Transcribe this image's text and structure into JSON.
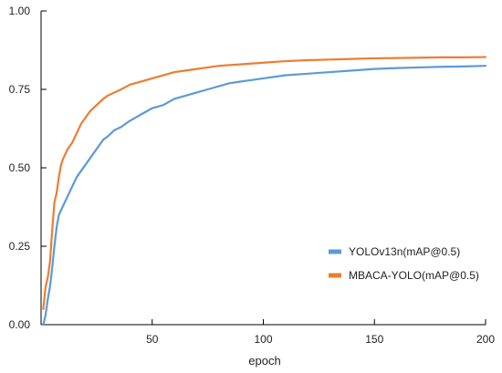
{
  "chart_data": {
    "type": "line",
    "title": "",
    "xlabel": "epoch",
    "ylabel": "",
    "xlim": [
      0,
      200
    ],
    "ylim": [
      0,
      1.0
    ],
    "x_ticks": [
      50,
      100,
      150,
      200
    ],
    "x_tick_labels": [
      "50",
      "100",
      "150",
      "200"
    ],
    "y_ticks": [
      0,
      0.25,
      0.5,
      0.75,
      1.0
    ],
    "y_tick_labels": [
      "0.00",
      "0.25",
      "0.50",
      "0.75",
      "1.00"
    ],
    "grid": false,
    "legend_position": "bottom-right",
    "series": [
      {
        "name": "YOLOv13n(mAP@0.5)",
        "color": "#5b9bd5",
        "points": [
          [
            1,
            0.0
          ],
          [
            2,
            0.03
          ],
          [
            3,
            0.08
          ],
          [
            4,
            0.12
          ],
          [
            5,
            0.18
          ],
          [
            6,
            0.25
          ],
          [
            7,
            0.31
          ],
          [
            8,
            0.35
          ],
          [
            10,
            0.38
          ],
          [
            12,
            0.41
          ],
          [
            14,
            0.44
          ],
          [
            16,
            0.47
          ],
          [
            18,
            0.49
          ],
          [
            20,
            0.51
          ],
          [
            22,
            0.53
          ],
          [
            25,
            0.56
          ],
          [
            28,
            0.59
          ],
          [
            30,
            0.6
          ],
          [
            33,
            0.62
          ],
          [
            36,
            0.63
          ],
          [
            40,
            0.65
          ],
          [
            45,
            0.67
          ],
          [
            50,
            0.69
          ],
          [
            55,
            0.7
          ],
          [
            60,
            0.72
          ],
          [
            65,
            0.73
          ],
          [
            70,
            0.74
          ],
          [
            75,
            0.75
          ],
          [
            80,
            0.76
          ],
          [
            85,
            0.77
          ],
          [
            90,
            0.775
          ],
          [
            95,
            0.78
          ],
          [
            100,
            0.785
          ],
          [
            110,
            0.795
          ],
          [
            120,
            0.8
          ],
          [
            130,
            0.805
          ],
          [
            140,
            0.81
          ],
          [
            150,
            0.815
          ],
          [
            160,
            0.818
          ],
          [
            170,
            0.82
          ],
          [
            180,
            0.822
          ],
          [
            190,
            0.823
          ],
          [
            200,
            0.825
          ]
        ]
      },
      {
        "name": "MBACA-YOLO(mAP@0.5)",
        "color": "#ed7d31",
        "points": [
          [
            1,
            0.05
          ],
          [
            2,
            0.12
          ],
          [
            3,
            0.15
          ],
          [
            4,
            0.2
          ],
          [
            5,
            0.3
          ],
          [
            6,
            0.39
          ],
          [
            7,
            0.42
          ],
          [
            8,
            0.47
          ],
          [
            9,
            0.51
          ],
          [
            10,
            0.53
          ],
          [
            12,
            0.56
          ],
          [
            14,
            0.58
          ],
          [
            16,
            0.61
          ],
          [
            18,
            0.64
          ],
          [
            20,
            0.66
          ],
          [
            22,
            0.68
          ],
          [
            25,
            0.7
          ],
          [
            28,
            0.72
          ],
          [
            30,
            0.73
          ],
          [
            33,
            0.74
          ],
          [
            36,
            0.75
          ],
          [
            40,
            0.765
          ],
          [
            45,
            0.775
          ],
          [
            50,
            0.785
          ],
          [
            55,
            0.795
          ],
          [
            60,
            0.805
          ],
          [
            65,
            0.81
          ],
          [
            70,
            0.815
          ],
          [
            75,
            0.82
          ],
          [
            80,
            0.825
          ],
          [
            90,
            0.83
          ],
          [
            100,
            0.835
          ],
          [
            110,
            0.84
          ],
          [
            120,
            0.843
          ],
          [
            130,
            0.845
          ],
          [
            140,
            0.847
          ],
          [
            150,
            0.849
          ],
          [
            160,
            0.85
          ],
          [
            170,
            0.851
          ],
          [
            180,
            0.852
          ],
          [
            190,
            0.852
          ],
          [
            200,
            0.853
          ]
        ]
      }
    ]
  }
}
